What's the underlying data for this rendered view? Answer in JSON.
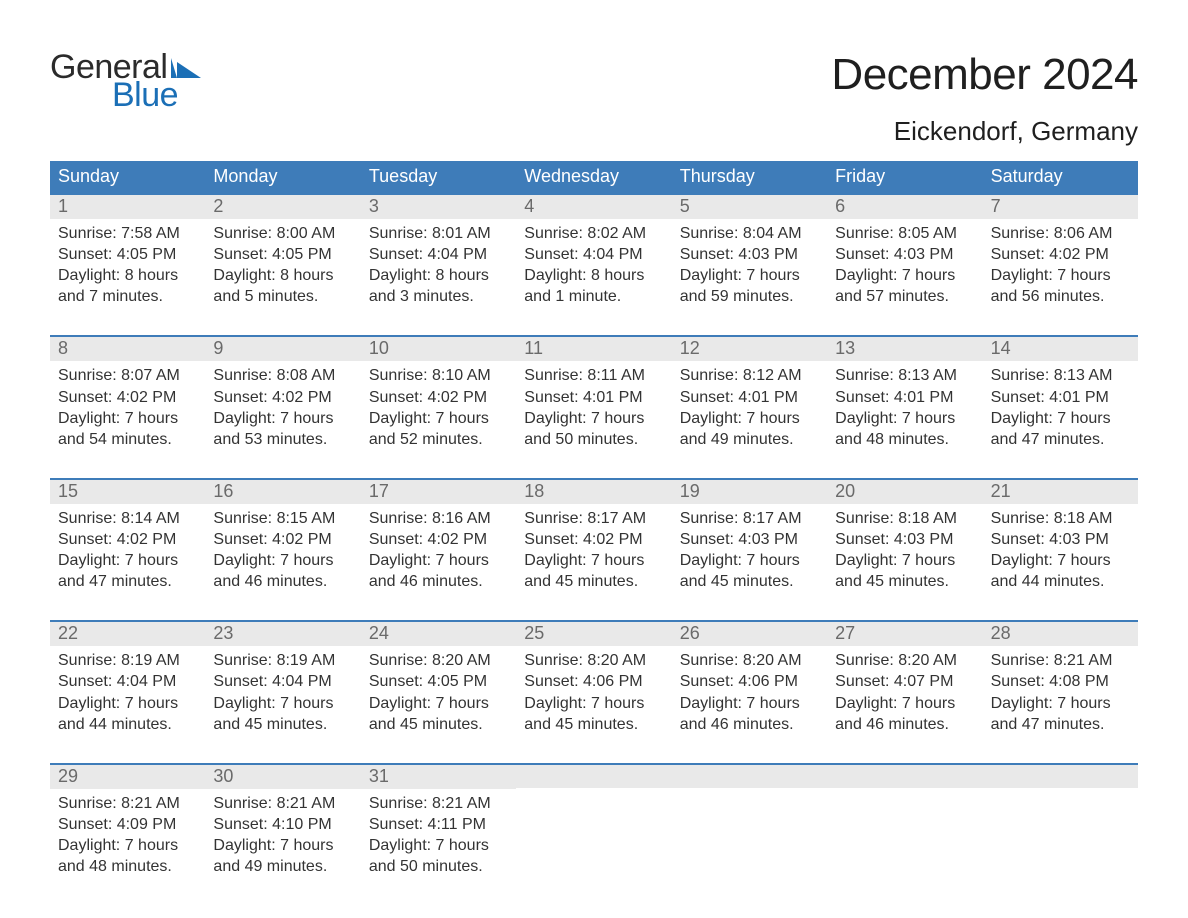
{
  "brand": {
    "line1": "General",
    "line2": "Blue"
  },
  "title": "December 2024",
  "location": "Eickendorf, Germany",
  "colors": {
    "header_bg": "#3e7cb9",
    "header_text": "#ffffff",
    "week_border": "#3e7cb9",
    "daynum_bg": "#e9e9e9",
    "daynum_text": "#6a6a6a",
    "body_text": "#333333",
    "page_bg": "#ffffff",
    "brand_blue": "#1b6fb6"
  },
  "typography": {
    "title_fontsize": 44,
    "subtitle_fontsize": 26,
    "dayname_fontsize": 18,
    "daynum_fontsize": 18,
    "body_fontsize": 16,
    "logo_fontsize": 34
  },
  "dayNames": [
    "Sunday",
    "Monday",
    "Tuesday",
    "Wednesday",
    "Thursday",
    "Friday",
    "Saturday"
  ],
  "weeks": [
    [
      {
        "num": "1",
        "sunrise": "Sunrise: 7:58 AM",
        "sunset": "Sunset: 4:05 PM",
        "d1": "Daylight: 8 hours",
        "d2": "and 7 minutes."
      },
      {
        "num": "2",
        "sunrise": "Sunrise: 8:00 AM",
        "sunset": "Sunset: 4:05 PM",
        "d1": "Daylight: 8 hours",
        "d2": "and 5 minutes."
      },
      {
        "num": "3",
        "sunrise": "Sunrise: 8:01 AM",
        "sunset": "Sunset: 4:04 PM",
        "d1": "Daylight: 8 hours",
        "d2": "and 3 minutes."
      },
      {
        "num": "4",
        "sunrise": "Sunrise: 8:02 AM",
        "sunset": "Sunset: 4:04 PM",
        "d1": "Daylight: 8 hours",
        "d2": "and 1 minute."
      },
      {
        "num": "5",
        "sunrise": "Sunrise: 8:04 AM",
        "sunset": "Sunset: 4:03 PM",
        "d1": "Daylight: 7 hours",
        "d2": "and 59 minutes."
      },
      {
        "num": "6",
        "sunrise": "Sunrise: 8:05 AM",
        "sunset": "Sunset: 4:03 PM",
        "d1": "Daylight: 7 hours",
        "d2": "and 57 minutes."
      },
      {
        "num": "7",
        "sunrise": "Sunrise: 8:06 AM",
        "sunset": "Sunset: 4:02 PM",
        "d1": "Daylight: 7 hours",
        "d2": "and 56 minutes."
      }
    ],
    [
      {
        "num": "8",
        "sunrise": "Sunrise: 8:07 AM",
        "sunset": "Sunset: 4:02 PM",
        "d1": "Daylight: 7 hours",
        "d2": "and 54 minutes."
      },
      {
        "num": "9",
        "sunrise": "Sunrise: 8:08 AM",
        "sunset": "Sunset: 4:02 PM",
        "d1": "Daylight: 7 hours",
        "d2": "and 53 minutes."
      },
      {
        "num": "10",
        "sunrise": "Sunrise: 8:10 AM",
        "sunset": "Sunset: 4:02 PM",
        "d1": "Daylight: 7 hours",
        "d2": "and 52 minutes."
      },
      {
        "num": "11",
        "sunrise": "Sunrise: 8:11 AM",
        "sunset": "Sunset: 4:01 PM",
        "d1": "Daylight: 7 hours",
        "d2": "and 50 minutes."
      },
      {
        "num": "12",
        "sunrise": "Sunrise: 8:12 AM",
        "sunset": "Sunset: 4:01 PM",
        "d1": "Daylight: 7 hours",
        "d2": "and 49 minutes."
      },
      {
        "num": "13",
        "sunrise": "Sunrise: 8:13 AM",
        "sunset": "Sunset: 4:01 PM",
        "d1": "Daylight: 7 hours",
        "d2": "and 48 minutes."
      },
      {
        "num": "14",
        "sunrise": "Sunrise: 8:13 AM",
        "sunset": "Sunset: 4:01 PM",
        "d1": "Daylight: 7 hours",
        "d2": "and 47 minutes."
      }
    ],
    [
      {
        "num": "15",
        "sunrise": "Sunrise: 8:14 AM",
        "sunset": "Sunset: 4:02 PM",
        "d1": "Daylight: 7 hours",
        "d2": "and 47 minutes."
      },
      {
        "num": "16",
        "sunrise": "Sunrise: 8:15 AM",
        "sunset": "Sunset: 4:02 PM",
        "d1": "Daylight: 7 hours",
        "d2": "and 46 minutes."
      },
      {
        "num": "17",
        "sunrise": "Sunrise: 8:16 AM",
        "sunset": "Sunset: 4:02 PM",
        "d1": "Daylight: 7 hours",
        "d2": "and 46 minutes."
      },
      {
        "num": "18",
        "sunrise": "Sunrise: 8:17 AM",
        "sunset": "Sunset: 4:02 PM",
        "d1": "Daylight: 7 hours",
        "d2": "and 45 minutes."
      },
      {
        "num": "19",
        "sunrise": "Sunrise: 8:17 AM",
        "sunset": "Sunset: 4:03 PM",
        "d1": "Daylight: 7 hours",
        "d2": "and 45 minutes."
      },
      {
        "num": "20",
        "sunrise": "Sunrise: 8:18 AM",
        "sunset": "Sunset: 4:03 PM",
        "d1": "Daylight: 7 hours",
        "d2": "and 45 minutes."
      },
      {
        "num": "21",
        "sunrise": "Sunrise: 8:18 AM",
        "sunset": "Sunset: 4:03 PM",
        "d1": "Daylight: 7 hours",
        "d2": "and 44 minutes."
      }
    ],
    [
      {
        "num": "22",
        "sunrise": "Sunrise: 8:19 AM",
        "sunset": "Sunset: 4:04 PM",
        "d1": "Daylight: 7 hours",
        "d2": "and 44 minutes."
      },
      {
        "num": "23",
        "sunrise": "Sunrise: 8:19 AM",
        "sunset": "Sunset: 4:04 PM",
        "d1": "Daylight: 7 hours",
        "d2": "and 45 minutes."
      },
      {
        "num": "24",
        "sunrise": "Sunrise: 8:20 AM",
        "sunset": "Sunset: 4:05 PM",
        "d1": "Daylight: 7 hours",
        "d2": "and 45 minutes."
      },
      {
        "num": "25",
        "sunrise": "Sunrise: 8:20 AM",
        "sunset": "Sunset: 4:06 PM",
        "d1": "Daylight: 7 hours",
        "d2": "and 45 minutes."
      },
      {
        "num": "26",
        "sunrise": "Sunrise: 8:20 AM",
        "sunset": "Sunset: 4:06 PM",
        "d1": "Daylight: 7 hours",
        "d2": "and 46 minutes."
      },
      {
        "num": "27",
        "sunrise": "Sunrise: 8:20 AM",
        "sunset": "Sunset: 4:07 PM",
        "d1": "Daylight: 7 hours",
        "d2": "and 46 minutes."
      },
      {
        "num": "28",
        "sunrise": "Sunrise: 8:21 AM",
        "sunset": "Sunset: 4:08 PM",
        "d1": "Daylight: 7 hours",
        "d2": "and 47 minutes."
      }
    ],
    [
      {
        "num": "29",
        "sunrise": "Sunrise: 8:21 AM",
        "sunset": "Sunset: 4:09 PM",
        "d1": "Daylight: 7 hours",
        "d2": "and 48 minutes."
      },
      {
        "num": "30",
        "sunrise": "Sunrise: 8:21 AM",
        "sunset": "Sunset: 4:10 PM",
        "d1": "Daylight: 7 hours",
        "d2": "and 49 minutes."
      },
      {
        "num": "31",
        "sunrise": "Sunrise: 8:21 AM",
        "sunset": "Sunset: 4:11 PM",
        "d1": "Daylight: 7 hours",
        "d2": "and 50 minutes."
      },
      null,
      null,
      null,
      null
    ]
  ]
}
